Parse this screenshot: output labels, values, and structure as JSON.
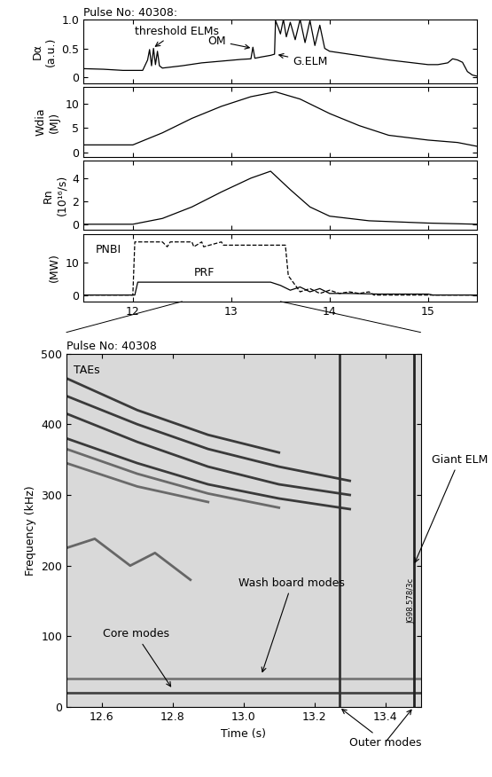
{
  "chart_data": [
    {
      "type": "line",
      "title": "Pulse No: 40308:",
      "ylabel_lines": [
        "Dα",
        "(a.u.)"
      ],
      "xlim": [
        11.5,
        15.5
      ],
      "xticks": [
        12,
        13,
        14,
        15
      ],
      "ylim": [
        -0.1,
        1.0
      ],
      "yticks": [
        0,
        0.5,
        1.0
      ],
      "tick_labels": "y",
      "series": [
        {
          "color": "#000000",
          "line_style": "solid",
          "x": [
            11.5,
            11.7,
            11.9,
            12.1,
            12.15,
            12.17,
            12.19,
            12.21,
            12.23,
            12.25,
            12.27,
            12.3,
            12.5,
            12.7,
            12.9,
            13.1,
            13.2,
            13.22,
            13.24,
            13.3,
            13.4,
            13.44,
            13.45,
            13.48,
            13.5,
            13.53,
            13.56,
            13.6,
            13.65,
            13.7,
            13.75,
            13.8,
            13.85,
            13.9,
            13.95,
            14.0,
            14.2,
            14.4,
            14.6,
            14.8,
            15.0,
            15.1,
            15.2,
            15.25,
            15.3,
            15.35,
            15.4,
            15.45,
            15.5
          ],
          "values": [
            0.15,
            0.14,
            0.12,
            0.12,
            0.3,
            0.48,
            0.2,
            0.5,
            0.22,
            0.45,
            0.2,
            0.16,
            0.2,
            0.25,
            0.28,
            0.31,
            0.32,
            0.52,
            0.33,
            0.35,
            0.38,
            0.4,
            0.98,
            0.85,
            0.75,
            1.0,
            0.7,
            0.95,
            0.65,
            1.0,
            0.6,
            0.98,
            0.55,
            0.9,
            0.5,
            0.45,
            0.4,
            0.35,
            0.3,
            0.26,
            0.22,
            0.22,
            0.25,
            0.32,
            0.3,
            0.26,
            0.1,
            0.04,
            0.02
          ]
        }
      ],
      "annotations": [
        {
          "text": "threshold ELMs",
          "points": [
            [
              12.2,
              0.5
            ]
          ]
        },
        {
          "text": "OM",
          "points": [
            [
              13.22,
              0.5
            ]
          ]
        },
        {
          "text": "G.ELM",
          "points": [
            [
              13.45,
              0.4
            ]
          ]
        }
      ]
    },
    {
      "type": "line",
      "ylabel_lines": [
        "Wdia",
        "(MJ)"
      ],
      "xlim": [
        11.5,
        15.5
      ],
      "xticks": [
        12,
        13,
        14,
        15
      ],
      "ylim": [
        -1,
        13.5
      ],
      "yticks": [
        0,
        5,
        10
      ],
      "tick_labels": "y",
      "series": [
        {
          "color": "#000000",
          "line_style": "solid",
          "x": [
            11.5,
            12.0,
            12.3,
            12.6,
            12.9,
            13.2,
            13.45,
            13.7,
            14.0,
            14.3,
            14.6,
            15.0,
            15.3,
            15.5
          ],
          "values": [
            1.5,
            1.5,
            4,
            7,
            9.5,
            11.5,
            12.5,
            11,
            8,
            5.5,
            3.5,
            2.5,
            2,
            1.2
          ]
        }
      ]
    },
    {
      "type": "line",
      "ylabel_lines": [
        "Rn",
        "(10¹⁶/s)"
      ],
      "xlim": [
        11.5,
        15.5
      ],
      "xticks": [
        12,
        13,
        14,
        15
      ],
      "ylim": [
        -0.5,
        5.5
      ],
      "yticks": [
        0,
        2,
        4
      ],
      "tick_labels": "y",
      "series": [
        {
          "color": "#000000",
          "line_style": "solid",
          "x": [
            11.5,
            12.0,
            12.3,
            12.6,
            12.9,
            13.2,
            13.4,
            13.6,
            13.8,
            14.0,
            14.4,
            15.0,
            15.5
          ],
          "values": [
            0,
            0,
            0.5,
            1.5,
            2.8,
            4,
            4.6,
            3,
            1.5,
            0.7,
            0.3,
            0.1,
            0
          ]
        }
      ]
    },
    {
      "type": "line",
      "ylabel_lines": [
        "(MW)"
      ],
      "xlim": [
        11.5,
        15.5
      ],
      "xticks": [
        12,
        13,
        14,
        15
      ],
      "ylim": [
        -2,
        19
      ],
      "yticks": [
        0,
        10
      ],
      "series": [
        {
          "name": "PNBI",
          "color": "#000000",
          "line_style": "dashed",
          "x": [
            11.5,
            12.0,
            12.02,
            12.3,
            12.35,
            12.38,
            12.6,
            12.62,
            12.7,
            12.72,
            12.9,
            12.92,
            13.55,
            13.58,
            13.7,
            13.8,
            13.9,
            14.0,
            14.1,
            14.2,
            14.3,
            14.4,
            14.45,
            15.5
          ],
          "values": [
            0,
            0,
            16.5,
            16.5,
            15,
            16.5,
            16.5,
            15,
            16.5,
            15,
            16.5,
            15.5,
            15.5,
            6,
            1,
            2,
            0.5,
            1.5,
            0.5,
            1,
            0.5,
            1,
            0,
            0
          ]
        },
        {
          "name": "PRF",
          "color": "#000000",
          "line_style": "solid",
          "x": [
            11.5,
            12.02,
            12.05,
            13.4,
            13.5,
            13.6,
            13.7,
            13.8,
            13.9,
            14.0,
            14.2,
            14.5,
            15.0,
            15.05,
            15.5
          ],
          "values": [
            0,
            0,
            4,
            4,
            3,
            1.5,
            2.5,
            1,
            2,
            0.5,
            0.5,
            0.3,
            0.3,
            0,
            0
          ]
        }
      ]
    },
    {
      "type": "line",
      "title": "Pulse No: 40308",
      "xlabel": "Time (s)",
      "ylabel_lines": [
        "Frequency (kHz)"
      ],
      "note": "TAEs",
      "figure_id": "JG98.578/3c",
      "xlim": [
        12.5,
        13.5
      ],
      "xticks": [
        12.6,
        12.8,
        13.0,
        13.2,
        13.4
      ],
      "ylim": [
        0,
        500
      ],
      "yticks": [
        0,
        100,
        200,
        300,
        400,
        500
      ],
      "series": [
        {
          "color": "#3a3a3a",
          "line_style": "solid",
          "x": [
            12.5,
            12.7,
            12.9,
            13.1
          ],
          "values": [
            465,
            420,
            385,
            360
          ]
        },
        {
          "color": "#3a3a3a",
          "line_style": "solid",
          "x": [
            12.5,
            12.7,
            12.9,
            13.1,
            13.3
          ],
          "values": [
            440,
            400,
            365,
            340,
            320
          ]
        },
        {
          "color": "#3a3a3a",
          "line_style": "solid",
          "x": [
            12.5,
            12.7,
            12.9,
            13.1,
            13.3
          ],
          "values": [
            415,
            375,
            340,
            315,
            300
          ]
        },
        {
          "color": "#3a3a3a",
          "line_style": "solid",
          "x": [
            12.5,
            12.7,
            12.9,
            13.1,
            13.3
          ],
          "values": [
            380,
            345,
            315,
            295,
            280
          ]
        },
        {
          "color": "#6a6a6a",
          "line_style": "solid",
          "x": [
            12.5,
            12.7,
            12.9,
            13.1
          ],
          "values": [
            365,
            330,
            302,
            282
          ]
        },
        {
          "color": "#6a6a6a",
          "line_style": "solid",
          "x": [
            12.5,
            12.7,
            12.9
          ],
          "values": [
            345,
            312,
            290
          ]
        },
        {
          "color": "#666666",
          "line_style": "solid",
          "x": [
            12.5,
            12.58,
            12.68,
            12.75,
            12.85
          ],
          "values": [
            225,
            238,
            200,
            218,
            180
          ]
        },
        {
          "color": "#444444",
          "line_style": "solid",
          "x": [
            12.5,
            13.5
          ],
          "values": [
            20,
            20
          ]
        },
        {
          "color": "#777777",
          "line_style": "solid",
          "x": [
            12.5,
            13.5
          ],
          "values": [
            40,
            40
          ]
        },
        {
          "color": "#333333",
          "line_style": "solid",
          "x": [
            13.27,
            13.27
          ],
          "values": [
            0,
            500
          ]
        },
        {
          "color": "#222222",
          "line_style": "solid",
          "x": [
            13.48,
            13.48
          ],
          "values": [
            0,
            500
          ]
        }
      ],
      "annotations": [
        {
          "text": "Core modes",
          "points": [
            [
              12.8,
              25
            ]
          ]
        },
        {
          "text": "Wash board modes",
          "points": [
            [
              13.05,
              45
            ]
          ]
        },
        {
          "text": "Giant ELM",
          "points": [
            [
              13.48,
              200
            ]
          ]
        },
        {
          "text": "Outer modes",
          "points": [
            [
              13.27,
              0
            ],
            [
              13.48,
              0
            ]
          ]
        }
      ]
    }
  ]
}
